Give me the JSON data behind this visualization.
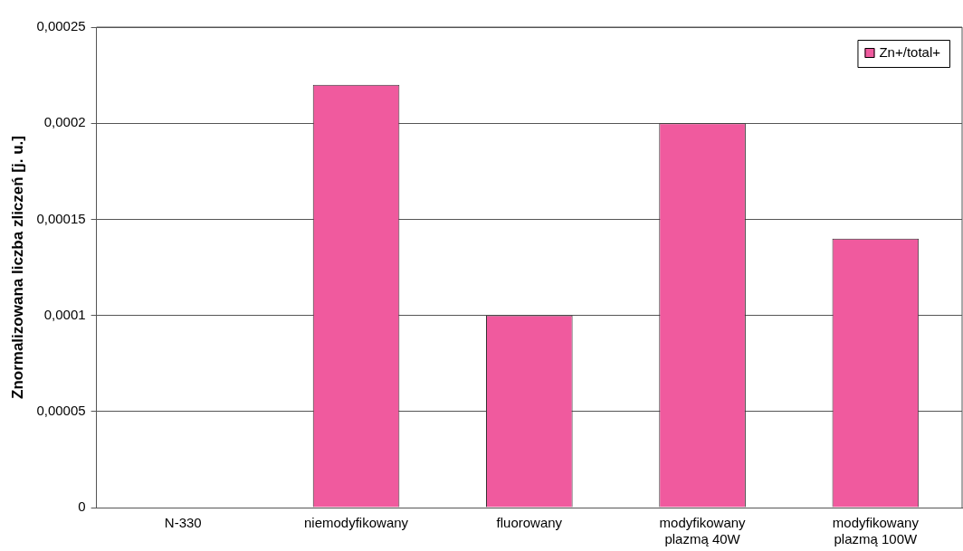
{
  "chart_data": {
    "type": "bar",
    "ylabel": "Znormalizowana liczba zliczeń [j. u.]",
    "categories": [
      "N-330",
      "niemodyfikowany",
      "fluorowany",
      "modyfikowany plazmą 40W",
      "modyfikowany plazmą 100W"
    ],
    "series": [
      {
        "name": "Zn+/total+",
        "color": "#f05a9e",
        "values": [
          0,
          0.00022,
          0.0001,
          0.0002,
          0.00014
        ]
      }
    ],
    "ylim": [
      0,
      0.00025
    ],
    "yticks": [
      {
        "value": 0,
        "label": "0"
      },
      {
        "value": 5e-05,
        "label": "0,00005"
      },
      {
        "value": 0.0001,
        "label": "0,0001"
      },
      {
        "value": 0.00015,
        "label": "0,00015"
      },
      {
        "value": 0.0002,
        "label": "0,0002"
      },
      {
        "value": 0.00025,
        "label": "0,00025"
      }
    ],
    "grid": "y",
    "legend": "top right"
  }
}
